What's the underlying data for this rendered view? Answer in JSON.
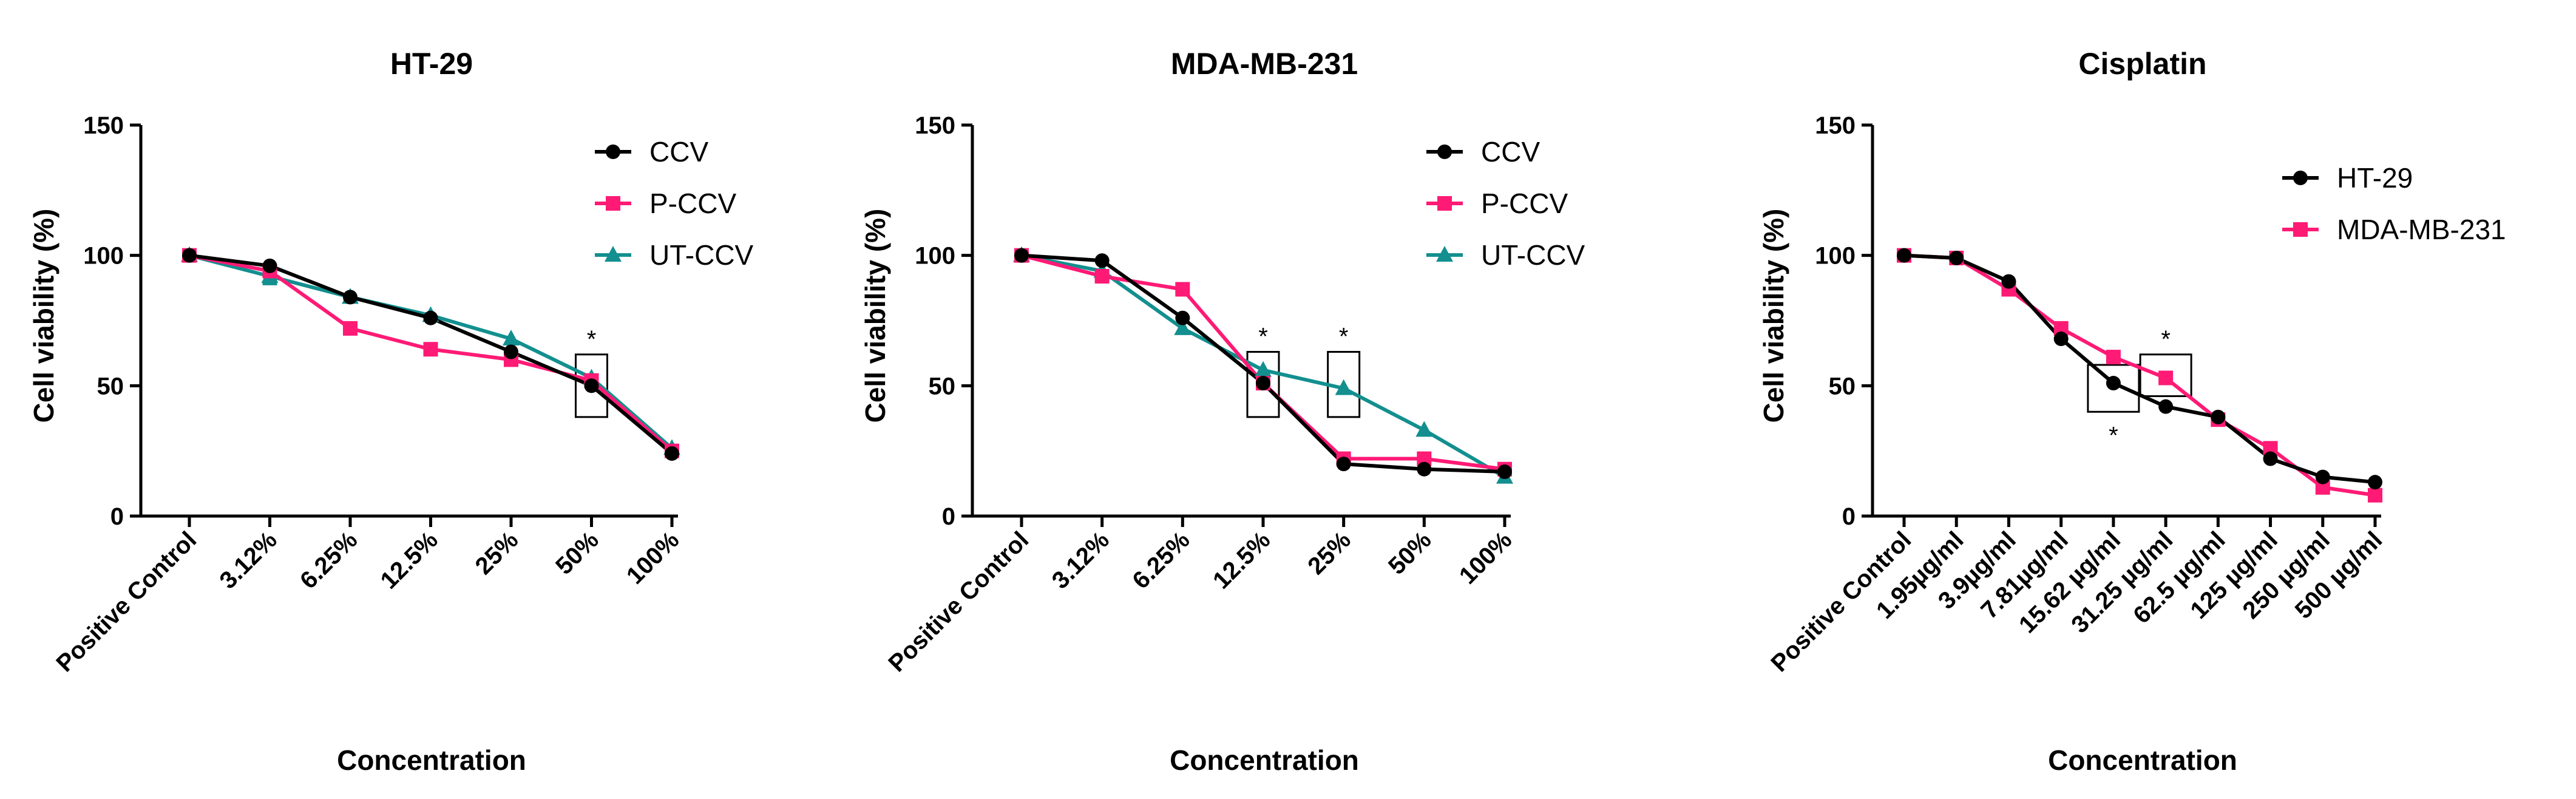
{
  "chart_data": [
    {
      "type": "line",
      "title": "HT-29",
      "xlabel": "Concentration",
      "ylabel": "Cell viability (%)",
      "ylim": [
        0,
        150
      ],
      "yticks": [
        0,
        50,
        100,
        150
      ],
      "categories": [
        "Positive Control",
        "3.12%",
        "6.25%",
        "12.5%",
        "25%",
        "50%",
        "100%"
      ],
      "series": [
        {
          "name": "CCV",
          "color": "#000000",
          "marker": "circle",
          "values": [
            100,
            96,
            84,
            76,
            63,
            50,
            24
          ]
        },
        {
          "name": "P-CCV",
          "color": "#ff1a75",
          "marker": "square",
          "values": [
            100,
            94,
            72,
            64,
            60,
            52,
            25
          ]
        },
        {
          "name": "UT-CCV",
          "color": "#138f8f",
          "marker": "triangle",
          "values": [
            100,
            92,
            84,
            77,
            68,
            53,
            26
          ]
        }
      ],
      "error_bars": [
        {
          "series": "UT-CCV",
          "index": 1,
          "low": 89,
          "high": 95
        }
      ],
      "annotations": [
        {
          "category_index": 5,
          "text": "*",
          "box": [
            38,
            62
          ]
        }
      ]
    },
    {
      "type": "line",
      "title": "MDA-MB-231",
      "xlabel": "Concentration",
      "ylabel": "Cell viability (%)",
      "ylim": [
        0,
        150
      ],
      "yticks": [
        0,
        50,
        100,
        150
      ],
      "categories": [
        "Positive Control",
        "3.12%",
        "6.25%",
        "12.5%",
        "25%",
        "50%",
        "100%"
      ],
      "series": [
        {
          "name": "CCV",
          "color": "#000000",
          "marker": "circle",
          "values": [
            100,
            98,
            76,
            51,
            20,
            18,
            17
          ]
        },
        {
          "name": "P-CCV",
          "color": "#ff1a75",
          "marker": "square",
          "values": [
            100,
            92,
            87,
            51,
            22,
            22,
            18
          ]
        },
        {
          "name": "UT-CCV",
          "color": "#138f8f",
          "marker": "triangle",
          "values": [
            100,
            94,
            72,
            56,
            49,
            33,
            15
          ]
        }
      ],
      "error_bars": [],
      "annotations": [
        {
          "category_index": 3,
          "text": "*",
          "box": [
            38,
            63
          ]
        },
        {
          "category_index": 4,
          "text": "*",
          "box": [
            38,
            63
          ]
        }
      ]
    },
    {
      "type": "line",
      "title": "Cisplatin",
      "xlabel": "Concentration",
      "ylabel": "Cell viability (%)",
      "ylim": [
        0,
        150
      ],
      "yticks": [
        0,
        50,
        100,
        150
      ],
      "categories": [
        "Positive Control",
        "1.95µg/ml",
        "3.9µg/ml",
        "7.81µg/ml",
        "15.62 µg/ml",
        "31.25 µg/ml",
        "62.5 µg/ml",
        "125 µg/ml",
        "250 µg/ml",
        "500 µg/ml"
      ],
      "series": [
        {
          "name": "HT-29",
          "color": "#000000",
          "marker": "circle",
          "values": [
            100,
            99,
            90,
            68,
            51,
            42,
            38,
            22,
            15,
            13
          ]
        },
        {
          "name": "MDA-MB-231",
          "color": "#ff1a75",
          "marker": "square",
          "values": [
            100,
            99,
            87,
            72,
            61,
            53,
            37,
            26,
            11,
            8
          ]
        }
      ],
      "error_bars": [],
      "annotations": [
        {
          "category_index": 4,
          "text": "*",
          "box": [
            40,
            58
          ],
          "star_below": true
        },
        {
          "category_index": 5,
          "text": "*",
          "box": [
            46,
            62
          ],
          "star_below": false
        }
      ]
    }
  ]
}
